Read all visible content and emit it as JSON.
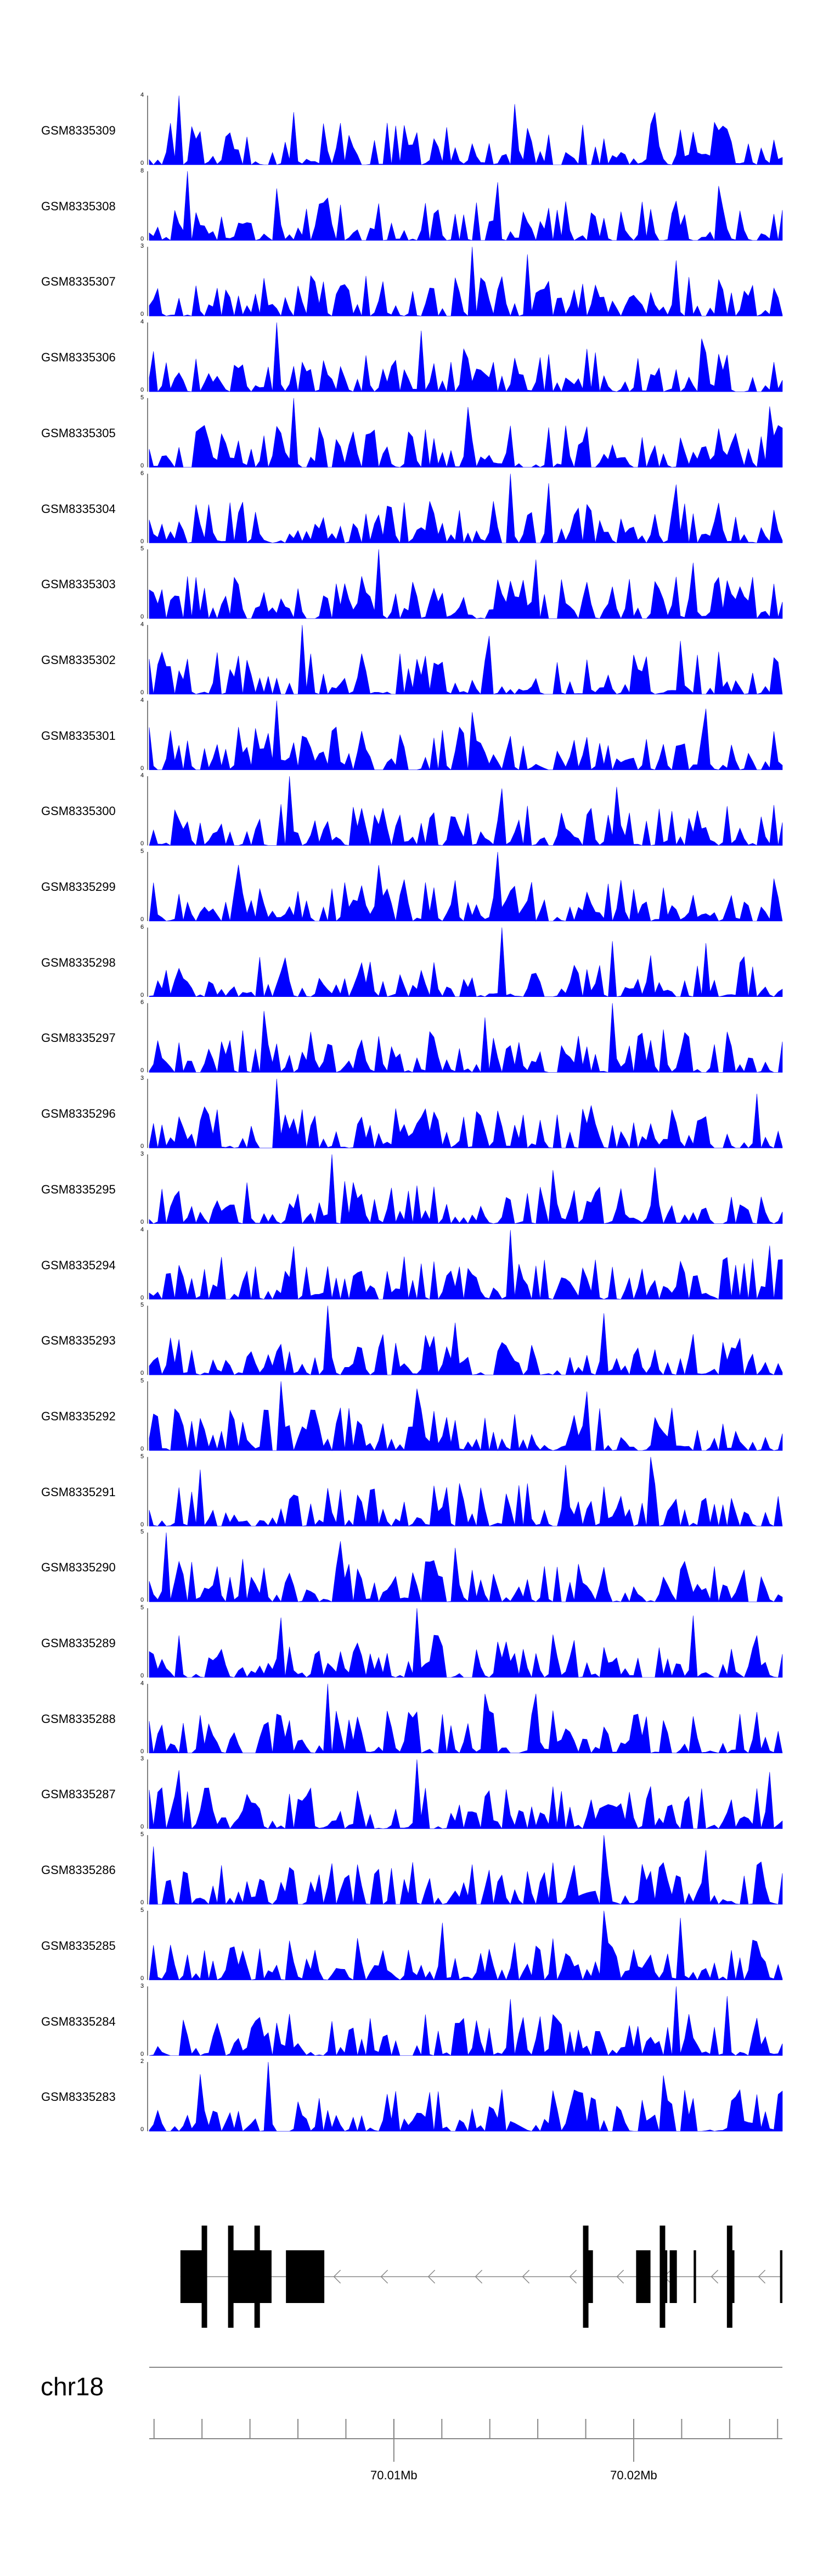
{
  "chart_data": {
    "type": "area",
    "title": "",
    "colors": {
      "signal": "#0000ff",
      "gene": "#000000",
      "axis": "#888888"
    },
    "chromosome": {
      "label": "chr18"
    },
    "genome_axis": {
      "range_mb": [
        69.9998,
        70.0262
      ],
      "ticks": [
        {
          "value": 70.01,
          "label": "70.01Mb"
        },
        {
          "value": 70.02,
          "label": "70.02Mb"
        }
      ],
      "minor_tick_step_mb": 0.002
    },
    "tracks": [
      {
        "name": "GSM8335309",
        "ymax": 4,
        "ymin": 0,
        "peaks_at_fraction": [
          0.05,
          0.23,
          0.58,
          0.8
        ]
      },
      {
        "name": "GSM8335308",
        "ymax": 8,
        "ymin": 0,
        "peaks_at_fraction": [
          0.06,
          0.2,
          0.55,
          0.9
        ]
      },
      {
        "name": "GSM8335307",
        "ymax": 3,
        "ymin": 0,
        "peaks_at_fraction": [
          0.51,
          0.6,
          0.83
        ]
      },
      {
        "name": "GSM8335306",
        "ymax": 4,
        "ymin": 0,
        "peaks_at_fraction": [
          0.2,
          0.43,
          0.87
        ]
      },
      {
        "name": "GSM8335305",
        "ymax": 5,
        "ymin": 0,
        "peaks_at_fraction": [
          0.23,
          0.5,
          0.98
        ]
      },
      {
        "name": "GSM8335304",
        "ymax": 6,
        "ymin": 0,
        "peaks_at_fraction": [
          0.57,
          0.63,
          0.83
        ]
      },
      {
        "name": "GSM8335303",
        "ymax": 5,
        "ymin": 0,
        "peaks_at_fraction": [
          0.36,
          0.61,
          0.86
        ]
      },
      {
        "name": "GSM8335302",
        "ymax": 4,
        "ymin": 0,
        "peaks_at_fraction": [
          0.24,
          0.54,
          0.84
        ]
      },
      {
        "name": "GSM8335301",
        "ymax": 4,
        "ymin": 0,
        "peaks_at_fraction": [
          0.2,
          0.51,
          0.88
        ]
      },
      {
        "name": "GSM8335300",
        "ymax": 4,
        "ymin": 0,
        "peaks_at_fraction": [
          0.22,
          0.56,
          0.74
        ]
      },
      {
        "name": "GSM8335299",
        "ymax": 5,
        "ymin": 0,
        "peaks_at_fraction": [
          0.55,
          0.14,
          0.36
        ]
      },
      {
        "name": "GSM8335298",
        "ymax": 6,
        "ymin": 0,
        "peaks_at_fraction": [
          0.56,
          0.73,
          0.88
        ]
      },
      {
        "name": "GSM8335297",
        "ymax": 6,
        "ymin": 0,
        "peaks_at_fraction": [
          0.73,
          0.53,
          0.18
        ]
      },
      {
        "name": "GSM8335296",
        "ymax": 3,
        "ymin": 0,
        "peaks_at_fraction": [
          0.2,
          0.96
        ]
      },
      {
        "name": "GSM8335295",
        "ymax": 3,
        "ymin": 0,
        "peaks_at_fraction": [
          0.29,
          0.64,
          0.8
        ]
      },
      {
        "name": "GSM8335294",
        "ymax": 4,
        "ymin": 0,
        "peaks_at_fraction": [
          0.57,
          0.23,
          0.98
        ]
      },
      {
        "name": "GSM8335293",
        "ymax": 5,
        "ymin": 0,
        "peaks_at_fraction": [
          0.28,
          0.48,
          0.72
        ]
      },
      {
        "name": "GSM8335292",
        "ymax": 5,
        "ymin": 0,
        "peaks_at_fraction": [
          0.21,
          0.42,
          0.69
        ]
      },
      {
        "name": "GSM8335291",
        "ymax": 5,
        "ymin": 0,
        "peaks_at_fraction": [
          0.79,
          0.66,
          0.08
        ]
      },
      {
        "name": "GSM8335290",
        "ymax": 5,
        "ymin": 0,
        "peaks_at_fraction": [
          0.03,
          0.3,
          0.48
        ]
      },
      {
        "name": "GSM8335289",
        "ymax": 5,
        "ymin": 0,
        "peaks_at_fraction": [
          0.42,
          0.21,
          0.86
        ]
      },
      {
        "name": "GSM8335288",
        "ymax": 4,
        "ymin": 0,
        "peaks_at_fraction": [
          0.28,
          0.53,
          0.61
        ]
      },
      {
        "name": "GSM8335287",
        "ymax": 3,
        "ymin": 0,
        "peaks_at_fraction": [
          0.42,
          0.05,
          0.98
        ]
      },
      {
        "name": "GSM8335286",
        "ymax": 5,
        "ymin": 0,
        "peaks_at_fraction": [
          0.72,
          0.01,
          0.88
        ]
      },
      {
        "name": "GSM8335285",
        "ymax": 5,
        "ymin": 0,
        "peaks_at_fraction": [
          0.72,
          0.46,
          0.84
        ]
      },
      {
        "name": "GSM8335284",
        "ymax": 3,
        "ymin": 0,
        "peaks_at_fraction": [
          0.83,
          0.57,
          0.91
        ]
      },
      {
        "name": "GSM8335283",
        "ymax": 2,
        "ymin": 0,
        "peaks_at_fraction": [
          0.19,
          0.81,
          0.08
        ]
      }
    ],
    "gene_model": {
      "strand": "-",
      "exons_mb": [
        [
          70.0011,
          70.0022
        ],
        [
          70.0033,
          70.0049
        ],
        [
          70.0055,
          70.0071
        ],
        [
          70.018,
          70.0183
        ],
        [
          70.0201,
          70.0207
        ],
        [
          70.0211,
          70.0214
        ],
        [
          70.0215,
          70.0218
        ],
        [
          70.0225,
          70.0226
        ],
        [
          70.024,
          70.0242
        ],
        [
          70.0261,
          70.0262
        ]
      ],
      "markers_mb": [
        70.0021,
        70.0032,
        70.0043,
        70.018,
        70.0212,
        70.024
      ]
    }
  }
}
